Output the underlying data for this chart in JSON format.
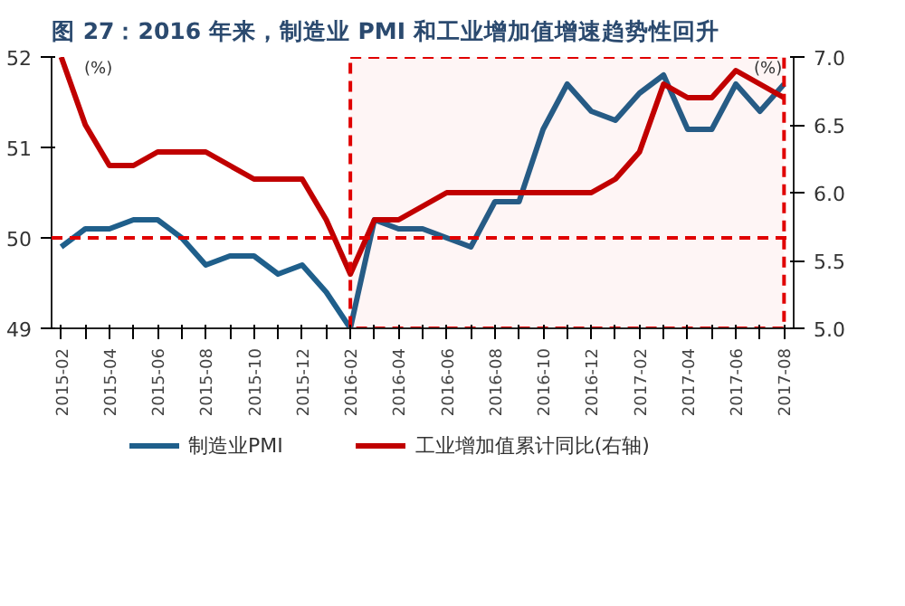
{
  "chart_data": {
    "type": "line",
    "title": "图 27：2016 年来，制造业 PMI 和工业增加值增速趋势性回升",
    "ylabel": "(%)",
    "y2label": "(%)",
    "categories": [
      "2015-02",
      null,
      "2015-04",
      null,
      "2015-06",
      null,
      "2015-08",
      null,
      "2015-10",
      null,
      "2015-12",
      null,
      "2016-02",
      null,
      "2016-04",
      null,
      "2016-06",
      null,
      "2016-08",
      null,
      "2016-10",
      null,
      "2016-12",
      null,
      "2017-02",
      null,
      "2017-04",
      null,
      "2017-06",
      null,
      "2017-08"
    ],
    "series": [
      {
        "name": "制造业PMI",
        "color": "#1f5f8b",
        "values": [
          49.9,
          50.1,
          50.1,
          50.2,
          50.2,
          50.0,
          49.7,
          49.8,
          49.8,
          49.6,
          49.7,
          49.4,
          49.0,
          50.2,
          50.1,
          50.1,
          50.0,
          49.9,
          50.4,
          50.4,
          51.2,
          51.7,
          51.4,
          51.3,
          51.6,
          51.8,
          51.2,
          51.2,
          51.7,
          51.4,
          51.7
        ]
      },
      {
        "name": "工业增加值累计同比(右轴)",
        "color": "#c00000",
        "axis": "y2",
        "values": [
          7.0,
          6.5,
          6.2,
          6.2,
          6.3,
          6.3,
          6.3,
          6.2,
          6.1,
          6.1,
          6.1,
          5.8,
          5.4,
          5.8,
          5.8,
          5.9,
          6.0,
          6.0,
          6.0,
          6.0,
          6.0,
          6.0,
          6.0,
          6.1,
          6.3,
          6.8,
          6.7,
          6.7,
          6.9,
          6.8,
          6.7
        ]
      }
    ],
    "ylim": [
      49,
      52
    ],
    "yticks": [
      49,
      50,
      51,
      52
    ],
    "y2lim": [
      5.0,
      7.0
    ],
    "y2ticks": [
      {
        "value": 5.0,
        "label": "5.0"
      },
      5.5,
      {
        "value": 6.0,
        "label": "6.0"
      },
      6.5,
      {
        "value": 7.0,
        "label": "7.0"
      }
    ],
    "ref_lines": [
      {
        "axis": "y",
        "value": 50,
        "color": "#e00000",
        "line_style": "dashed"
      }
    ],
    "bands": [
      {
        "axis": "x",
        "from": "2016-02",
        "to": "2017-08",
        "color": "#e00000"
      }
    ],
    "grid": false,
    "legend": "bottom",
    "line_style": "solid",
    "marker": "none"
  }
}
